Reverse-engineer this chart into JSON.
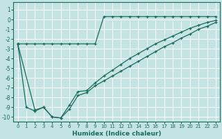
{
  "xlabel": "Humidex (Indice chaleur)",
  "bg_color": "#c4e4e4",
  "line_color": "#1a6b5a",
  "grid_color": "#ffffff",
  "xlim": [
    -0.5,
    23.5
  ],
  "ylim": [
    -10.5,
    1.8
  ],
  "yticks": [
    1,
    0,
    -1,
    -2,
    -3,
    -4,
    -5,
    -6,
    -7,
    -8,
    -9,
    -10
  ],
  "xticks": [
    0,
    1,
    2,
    3,
    4,
    5,
    6,
    7,
    8,
    9,
    10,
    11,
    12,
    13,
    14,
    15,
    16,
    17,
    18,
    19,
    20,
    21,
    22,
    23
  ],
  "line_top_x": [
    0,
    1,
    2,
    3,
    4,
    5,
    6,
    7,
    8,
    9,
    10,
    11,
    12,
    13,
    14,
    15,
    16,
    17,
    18,
    19,
    20,
    21,
    22,
    23
  ],
  "line_top_y": [
    -2.5,
    -2.5,
    -2.5,
    -2.5,
    -2.5,
    -2.5,
    -2.5,
    -2.5,
    -2.5,
    -2.5,
    0.3,
    0.3,
    0.3,
    0.3,
    0.3,
    0.3,
    0.3,
    0.3,
    0.3,
    0.3,
    0.3,
    0.3,
    0.3,
    0.3
  ],
  "line_diag_x": [
    0,
    2,
    3,
    4,
    5,
    6,
    7,
    8,
    9,
    10,
    11,
    12,
    13,
    14,
    15,
    16,
    17,
    18,
    19,
    20,
    21,
    22,
    23
  ],
  "line_diag_y": [
    -2.5,
    -9.3,
    -9.0,
    -10.0,
    -10.1,
    -8.8,
    -7.4,
    -7.3,
    -6.5,
    -5.8,
    -5.2,
    -4.6,
    -4.0,
    -3.5,
    -3.0,
    -2.5,
    -2.1,
    -1.7,
    -1.3,
    -0.9,
    -0.6,
    -0.3,
    -0.1
  ],
  "line_dip_x": [
    0,
    1,
    2,
    3,
    4,
    5,
    6,
    7,
    8,
    9,
    10,
    11,
    12,
    13,
    14,
    15,
    16,
    17,
    18,
    19,
    20,
    21,
    22,
    23
  ],
  "line_dip_y": [
    -2.5,
    -9.0,
    -9.4,
    -9.0,
    -10.0,
    -10.1,
    -9.2,
    -7.8,
    -7.5,
    -6.8,
    -6.3,
    -5.8,
    -5.3,
    -4.8,
    -4.3,
    -3.8,
    -3.3,
    -2.8,
    -2.4,
    -1.9,
    -1.5,
    -1.0,
    -0.7,
    -0.3
  ]
}
